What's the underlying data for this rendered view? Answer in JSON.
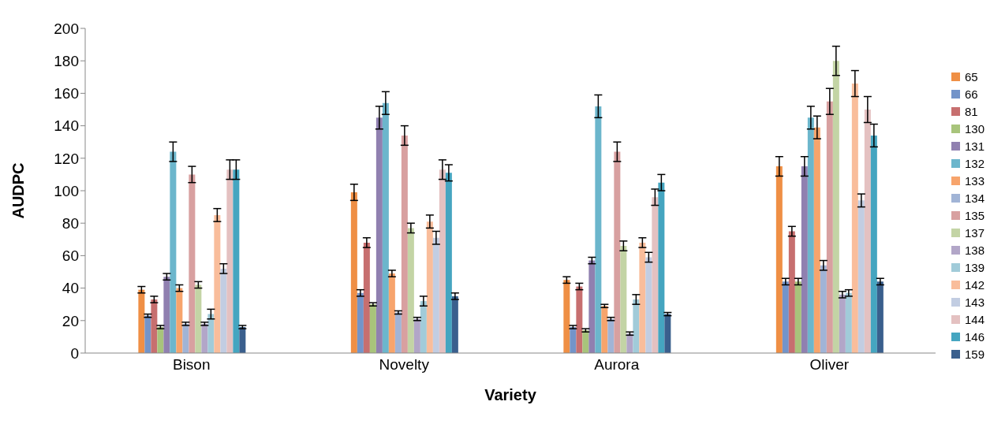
{
  "chart_data": {
    "type": "bar",
    "xlabel": "Variety",
    "ylabel": "AUDPC",
    "categories": [
      "Bison",
      "Novelty",
      "Aurora",
      "Oliver"
    ],
    "ylim": [
      0,
      200
    ],
    "yticks": [
      0,
      20,
      40,
      60,
      80,
      100,
      120,
      140,
      160,
      180,
      200
    ],
    "grid": false,
    "legend": "right",
    "series": [
      {
        "name": "65",
        "color": "#ef8f45",
        "values": [
          39,
          99,
          45,
          115
        ],
        "errors": [
          2,
          5,
          2,
          6
        ]
      },
      {
        "name": "66",
        "color": "#7394c9",
        "values": [
          23,
          37,
          16,
          44
        ],
        "errors": [
          1,
          2,
          1,
          2
        ]
      },
      {
        "name": "81",
        "color": "#c76f6f",
        "values": [
          33,
          68,
          41,
          75
        ],
        "errors": [
          2,
          3,
          2,
          3
        ]
      },
      {
        "name": "130",
        "color": "#a8c47b",
        "values": [
          16,
          30,
          14,
          44
        ],
        "errors": [
          1,
          1,
          1,
          2
        ]
      },
      {
        "name": "131",
        "color": "#9080b0",
        "values": [
          47,
          145,
          57,
          115
        ],
        "errors": [
          2,
          7,
          2,
          6
        ]
      },
      {
        "name": "132",
        "color": "#6cb6cc",
        "values": [
          124,
          154,
          152,
          145
        ],
        "errors": [
          6,
          7,
          7,
          7
        ]
      },
      {
        "name": "133",
        "color": "#f7a46c",
        "values": [
          40,
          49,
          29,
          139
        ],
        "errors": [
          2,
          2,
          1,
          7
        ]
      },
      {
        "name": "134",
        "color": "#a1b4d6",
        "values": [
          18,
          25,
          21,
          54
        ],
        "errors": [
          1,
          1,
          1,
          3
        ]
      },
      {
        "name": "135",
        "color": "#d8a0a0",
        "values": [
          110,
          134,
          124,
          155
        ],
        "errors": [
          5,
          6,
          6,
          8
        ]
      },
      {
        "name": "137",
        "color": "#c3d4a5",
        "values": [
          42,
          77,
          66,
          180
        ],
        "errors": [
          2,
          3,
          3,
          9
        ]
      },
      {
        "name": "138",
        "color": "#b2a6c8",
        "values": [
          18,
          21,
          12,
          36
        ],
        "errors": [
          1,
          1,
          1,
          2
        ]
      },
      {
        "name": "139",
        "color": "#a1cbd9",
        "values": [
          24,
          32,
          33,
          37
        ],
        "errors": [
          3,
          3,
          3,
          2
        ]
      },
      {
        "name": "142",
        "color": "#f9bd9b",
        "values": [
          85,
          81,
          68,
          166
        ],
        "errors": [
          4,
          4,
          3,
          8
        ]
      },
      {
        "name": "143",
        "color": "#c2cde2",
        "values": [
          52,
          71,
          59,
          94
        ],
        "errors": [
          3,
          4,
          3,
          4
        ]
      },
      {
        "name": "144",
        "color": "#e4c1c1",
        "values": [
          113,
          113,
          96,
          150
        ],
        "errors": [
          6,
          6,
          5,
          8
        ]
      },
      {
        "name": "146",
        "color": "#45a5c0",
        "values": [
          113,
          111,
          105,
          134
        ],
        "errors": [
          6,
          5,
          5,
          7
        ]
      },
      {
        "name": "159",
        "color": "#3a5f8d",
        "values": [
          16,
          35,
          24,
          44
        ],
        "errors": [
          1,
          2,
          1,
          2
        ]
      }
    ]
  }
}
